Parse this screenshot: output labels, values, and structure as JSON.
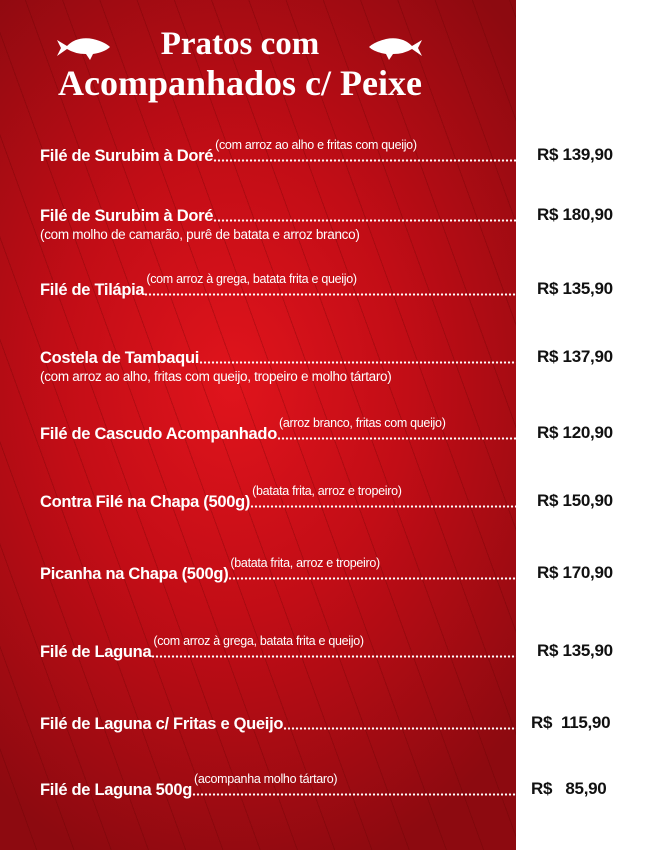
{
  "title": {
    "line1": "Pratos com",
    "line2": "Acompanhados c/ Peixe"
  },
  "icons": {
    "left": "fish-icon",
    "right": "fish-icon"
  },
  "colors": {
    "background_red": "#c20d16",
    "text": "#ffffff",
    "price_text": "#111111"
  },
  "items": [
    {
      "name": "Filé de Surubim à Doré",
      "note": "(com arroz ao alho e fritas com queijo)",
      "sub": "",
      "price": "R$ 139,90"
    },
    {
      "name": "Filé de Surubim à Doré",
      "note": "",
      "sub": "(com molho de camarão, purê de batata e arroz branco)",
      "price": "R$ 180,90"
    },
    {
      "name": "Filé de Tilápia",
      "note": "(com arroz à grega, batata frita e queijo)",
      "sub": "",
      "price": "R$ 135,90"
    },
    {
      "name": "Costela de Tambaqui",
      "note": "",
      "sub": "(com arroz ao alho, fritas com queijo, tropeiro e molho tártaro)",
      "price": "R$ 137,90"
    },
    {
      "name": "Filé de Cascudo Acompanhado",
      "note": "(arroz branco, fritas com queijo)",
      "sub": "",
      "price": "R$ 120,90"
    },
    {
      "name": "Contra Filé na Chapa (500g)",
      "note": "(batata frita, arroz e tropeiro)",
      "sub": "",
      "price": "R$ 150,90"
    },
    {
      "name": "Picanha na Chapa (500g)",
      "note": "(batata frita, arroz e tropeiro)",
      "sub": "",
      "price": "R$ 170,90"
    },
    {
      "name": "Filé de Laguna",
      "note": "(com arroz à grega, batata frita e queijo)",
      "sub": "",
      "price": "R$ 135,90"
    },
    {
      "name": "Filé de Laguna c/ Fritas e Queijo",
      "note": "",
      "sub": "",
      "price": "R$  115,90"
    },
    {
      "name": "Filé de Laguna 500g",
      "note": "(acompanha molho tártaro)",
      "sub": "",
      "price": "R$   85,90"
    }
  ]
}
